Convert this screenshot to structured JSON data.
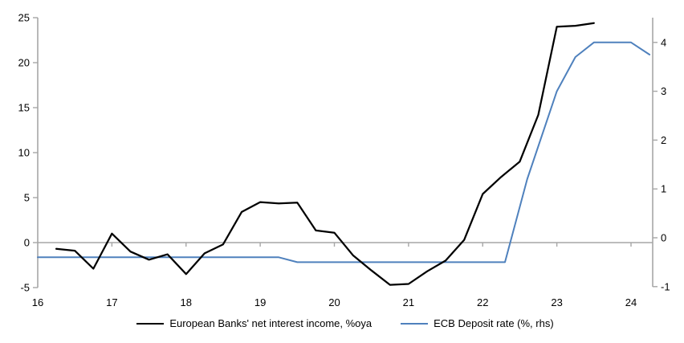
{
  "chart_data": {
    "type": "line",
    "title": "",
    "xlabel": "",
    "ylabel_left": "",
    "ylabel_right": "",
    "legend_position": "bottom",
    "grid": "zero-line-only",
    "axis_color": "#a6a6a6",
    "text_color": "#000000",
    "x_axis": {
      "min": 16,
      "max": 24.29,
      "tick_labels": [
        "16",
        "17",
        "18",
        "19",
        "20",
        "21",
        "22",
        "23",
        "24"
      ],
      "tick_values": [
        16,
        17,
        18,
        19,
        20,
        21,
        22,
        23,
        24
      ]
    },
    "left_axis": {
      "min": -5,
      "max": 25,
      "tick_labels": [
        "25",
        "20",
        "15",
        "10",
        "5",
        "0",
        "-5"
      ],
      "tick_values": [
        25,
        20,
        15,
        10,
        5,
        0,
        -5
      ]
    },
    "right_axis": {
      "min": -1,
      "max": 4.5,
      "tick_labels": [
        "4",
        "3",
        "2",
        "1",
        "0",
        "-1"
      ],
      "tick_values": [
        4,
        3,
        2,
        1,
        0,
        -1
      ]
    },
    "series": [
      {
        "name": "European Banks' net interest income, %oya",
        "axis": "left",
        "color": "#000000",
        "width": 2.25,
        "points": [
          [
            16.25,
            -0.7
          ],
          [
            16.5,
            -0.9
          ],
          [
            16.75,
            -2.9
          ],
          [
            17.0,
            1.0
          ],
          [
            17.25,
            -1.0
          ],
          [
            17.5,
            -1.9
          ],
          [
            17.75,
            -1.3
          ],
          [
            18.0,
            -3.5
          ],
          [
            18.25,
            -1.2
          ],
          [
            18.5,
            -0.2
          ],
          [
            18.75,
            3.4
          ],
          [
            19.0,
            4.5
          ],
          [
            19.25,
            4.35
          ],
          [
            19.5,
            4.45
          ],
          [
            19.75,
            1.35
          ],
          [
            20.0,
            1.1
          ],
          [
            20.25,
            -1.4
          ],
          [
            20.5,
            -3.1
          ],
          [
            20.75,
            -4.7
          ],
          [
            21.0,
            -4.6
          ],
          [
            21.25,
            -3.2
          ],
          [
            21.5,
            -2.0
          ],
          [
            21.75,
            0.3
          ],
          [
            22.0,
            5.4
          ],
          [
            22.25,
            7.3
          ],
          [
            22.5,
            9.0
          ],
          [
            22.75,
            14.2
          ],
          [
            23.0,
            24.0
          ],
          [
            23.25,
            24.1
          ],
          [
            23.5,
            24.4
          ]
        ]
      },
      {
        "name": "ECB Deposit rate (%, rhs)",
        "axis": "right",
        "color": "#4f81bd",
        "width": 2,
        "points": [
          [
            16.0,
            -0.4
          ],
          [
            19.25,
            -0.4
          ],
          [
            19.5,
            -0.5
          ],
          [
            22.3,
            -0.5
          ],
          [
            22.6,
            1.2
          ],
          [
            23.0,
            3.0
          ],
          [
            23.25,
            3.7
          ],
          [
            23.5,
            4.0
          ],
          [
            24.0,
            4.0
          ],
          [
            24.25,
            3.75
          ]
        ]
      }
    ]
  }
}
